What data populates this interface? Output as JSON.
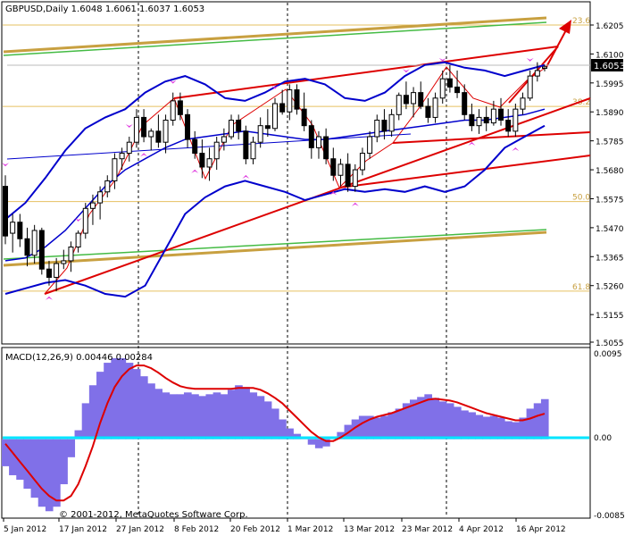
{
  "main_chart": {
    "symbol_label": "GBPUSD,Daily  1.6048 1.6061 1.6037 1.6053",
    "current_price_label": "1.6053",
    "y_ticks": [
      "1.6205",
      "1.6100",
      "1.5995",
      "1.5890",
      "1.5785",
      "1.5680",
      "1.5575",
      "1.5470",
      "1.5365",
      "1.5260",
      "1.5155",
      "1.5055"
    ],
    "fib_labels": [
      {
        "text": "23.6",
        "price": 1.6205
      },
      {
        "text": "38.2",
        "price": 1.591
      },
      {
        "text": "50.0",
        "price": 1.5565
      },
      {
        "text": "61.8",
        "price": 1.524
      }
    ]
  },
  "macd_panel": {
    "label": "MACD(12,26,9) 0.00446 0.00284",
    "y_top_label": "0.0095",
    "y_zero_label": "0.00",
    "y_bottom_label": "-0.00857"
  },
  "x_axis": {
    "labels": [
      "5 Jan 2012",
      "17 Jan 2012",
      "27 Jan 2012",
      "8 Feb 2012",
      "20 Feb 2012",
      "1 Mar 2012",
      "13 Mar 2012",
      "23 Mar 2012",
      "4 Apr 2012",
      "16 Apr 2012"
    ]
  },
  "copyright": "© 2001-2012, MetaQuotes Software Corp.",
  "colors": {
    "bull_candle": "#ffffff",
    "bear_candle": "#000000",
    "bollinger": "#0000cc",
    "trendline": "#dd0000",
    "macd_hist": "#8070e8",
    "signal": "#dd0000",
    "zero_line": "#00e5ff",
    "channel_green": "#44bb44",
    "channel_gold": "#c8a040",
    "fib": "#e6c060"
  },
  "chart_data": [
    {
      "type": "candlestick",
      "title": "GBPUSD,Daily  1.6048 1.6061 1.6037 1.6053",
      "x_range": [
        "5 Jan 2012",
        "20 Apr 2012"
      ],
      "ylim": [
        1.5055,
        1.63
      ],
      "open_high_low_close_last": [
        1.6048,
        1.6061,
        1.6037,
        1.6053
      ],
      "candles": [
        [
          1.562,
          1.566,
          1.541,
          1.544
        ],
        [
          1.545,
          1.552,
          1.538,
          1.549
        ],
        [
          1.549,
          1.552,
          1.54,
          1.543
        ],
        [
          1.543,
          1.547,
          1.533,
          1.537
        ],
        [
          1.537,
          1.548,
          1.534,
          1.546
        ],
        [
          1.546,
          1.547,
          1.53,
          1.532
        ],
        [
          1.532,
          1.535,
          1.526,
          1.529
        ],
        [
          1.529,
          1.536,
          1.524,
          1.534
        ],
        [
          1.534,
          1.539,
          1.532,
          1.535
        ],
        [
          1.535,
          1.542,
          1.531,
          1.54
        ],
        [
          1.54,
          1.546,
          1.538,
          1.545
        ],
        [
          1.545,
          1.556,
          1.543,
          1.554
        ],
        [
          1.554,
          1.559,
          1.548,
          1.556
        ],
        [
          1.556,
          1.562,
          1.55,
          1.56
        ],
        [
          1.56,
          1.566,
          1.558,
          1.564
        ],
        [
          1.564,
          1.574,
          1.561,
          1.572
        ],
        [
          1.572,
          1.576,
          1.568,
          1.574
        ],
        [
          1.574,
          1.58,
          1.571,
          1.578
        ],
        [
          1.578,
          1.59,
          1.576,
          1.587
        ],
        [
          1.587,
          1.59,
          1.578,
          1.58
        ],
        [
          1.58,
          1.583,
          1.575,
          1.582
        ],
        [
          1.582,
          1.588,
          1.576,
          1.578
        ],
        [
          1.578,
          1.588,
          1.574,
          1.586
        ],
        [
          1.586,
          1.596,
          1.584,
          1.593
        ],
        [
          1.593,
          1.596,
          1.586,
          1.588
        ],
        [
          1.588,
          1.59,
          1.576,
          1.579
        ],
        [
          1.579,
          1.582,
          1.572,
          1.574
        ],
        [
          1.574,
          1.579,
          1.565,
          1.569
        ],
        [
          1.569,
          1.576,
          1.564,
          1.572
        ],
        [
          1.572,
          1.58,
          1.568,
          1.578
        ],
        [
          1.578,
          1.583,
          1.575,
          1.58
        ],
        [
          1.58,
          1.588,
          1.579,
          1.586
        ],
        [
          1.586,
          1.588,
          1.579,
          1.582
        ],
        [
          1.582,
          1.584,
          1.57,
          1.572
        ],
        [
          1.572,
          1.58,
          1.57,
          1.578
        ],
        [
          1.578,
          1.587,
          1.576,
          1.584
        ],
        [
          1.584,
          1.59,
          1.58,
          1.583
        ],
        [
          1.583,
          1.594,
          1.582,
          1.592
        ],
        [
          1.592,
          1.597,
          1.588,
          1.589
        ],
        [
          1.589,
          1.599,
          1.586,
          1.597
        ],
        [
          1.597,
          1.599,
          1.588,
          1.59
        ],
        [
          1.59,
          1.596,
          1.582,
          1.584
        ],
        [
          1.584,
          1.586,
          1.572,
          1.576
        ],
        [
          1.576,
          1.582,
          1.572,
          1.58
        ],
        [
          1.58,
          1.583,
          1.57,
          1.572
        ],
        [
          1.572,
          1.576,
          1.564,
          1.566
        ],
        [
          1.566,
          1.572,
          1.562,
          1.57
        ],
        [
          1.57,
          1.574,
          1.56,
          1.562
        ],
        [
          1.562,
          1.57,
          1.56,
          1.568
        ],
        [
          1.568,
          1.576,
          1.566,
          1.574
        ],
        [
          1.574,
          1.582,
          1.572,
          1.58
        ],
        [
          1.58,
          1.588,
          1.578,
          1.586
        ],
        [
          1.586,
          1.59,
          1.579,
          1.582
        ],
        [
          1.582,
          1.59,
          1.58,
          1.588
        ],
        [
          1.588,
          1.596,
          1.586,
          1.595
        ],
        [
          1.595,
          1.6,
          1.59,
          1.592
        ],
        [
          1.592,
          1.598,
          1.587,
          1.596
        ],
        [
          1.596,
          1.6,
          1.59,
          1.591
        ],
        [
          1.591,
          1.594,
          1.585,
          1.587
        ],
        [
          1.587,
          1.596,
          1.585,
          1.594
        ],
        [
          1.594,
          1.604,
          1.592,
          1.601
        ],
        [
          1.601,
          1.606,
          1.596,
          1.598
        ],
        [
          1.598,
          1.604,
          1.594,
          1.596
        ],
        [
          1.596,
          1.599,
          1.586,
          1.588
        ],
        [
          1.588,
          1.592,
          1.582,
          1.584
        ],
        [
          1.584,
          1.59,
          1.581,
          1.587
        ],
        [
          1.587,
          1.591,
          1.582,
          1.585
        ],
        [
          1.585,
          1.593,
          1.584,
          1.59
        ],
        [
          1.59,
          1.594,
          1.584,
          1.586
        ],
        [
          1.586,
          1.59,
          1.58,
          1.582
        ],
        [
          1.582,
          1.592,
          1.58,
          1.59
        ],
        [
          1.59,
          1.596,
          1.588,
          1.594
        ],
        [
          1.594,
          1.604,
          1.593,
          1.602
        ],
        [
          1.602,
          1.607,
          1.6,
          1.604
        ],
        [
          1.6048,
          1.6061,
          1.6037,
          1.6053
        ]
      ],
      "bollinger_upper": [
        1.55,
        1.556,
        1.565,
        1.575,
        1.583,
        1.587,
        1.59,
        1.596,
        1.6,
        1.602,
        1.599,
        1.594,
        1.593,
        1.596,
        1.6,
        1.601,
        1.599,
        1.594,
        1.593,
        1.596,
        1.602,
        1.606,
        1.607,
        1.605,
        1.604,
        1.602,
        1.604,
        1.606
      ],
      "bollinger_middle": [
        1.535,
        1.536,
        1.54,
        1.546,
        1.554,
        1.562,
        1.568,
        1.572,
        1.576,
        1.579,
        1.58,
        1.581,
        1.582,
        1.581,
        1.58,
        1.579,
        1.579,
        1.58,
        1.581,
        1.582,
        1.583,
        1.584,
        1.585,
        1.586,
        1.586,
        1.587,
        1.588,
        1.59
      ],
      "bollinger_lower": [
        1.523,
        1.525,
        1.527,
        1.528,
        1.526,
        1.523,
        1.522,
        1.526,
        1.539,
        1.552,
        1.558,
        1.562,
        1.564,
        1.562,
        1.56,
        1.557,
        1.559,
        1.561,
        1.56,
        1.561,
        1.56,
        1.562,
        1.56,
        1.562,
        1.568,
        1.576,
        1.58,
        1.584
      ],
      "fib_levels": [
        {
          "label": "23.6",
          "price": 1.6205
        },
        {
          "label": "38.2",
          "price": 1.591
        },
        {
          "label": "50.0",
          "price": 1.5565
        },
        {
          "label": "61.8",
          "price": 1.524
        }
      ]
    },
    {
      "type": "bar",
      "title": "MACD(12,26,9) 0.00446 0.00284",
      "ylim": [
        -0.00857,
        0.0095
      ],
      "series": [
        {
          "name": "MACD",
          "values": [
            -0.003,
            -0.004,
            -0.0045,
            -0.0055,
            -0.0065,
            -0.0075,
            -0.008,
            -0.0075,
            -0.005,
            -0.002,
            0.001,
            0.004,
            0.006,
            0.0075,
            0.0085,
            0.009,
            0.009,
            0.0085,
            0.0078,
            0.007,
            0.0062,
            0.0056,
            0.0052,
            0.005,
            0.005,
            0.0052,
            0.005,
            0.0048,
            0.005,
            0.0052,
            0.005,
            0.0055,
            0.006,
            0.0058,
            0.0052,
            0.0048,
            0.0042,
            0.0034,
            0.0022,
            0.0012,
            0.0006,
            0.0002,
            -0.0006,
            -0.001,
            -0.0008,
            0.0,
            0.0008,
            0.0016,
            0.0022,
            0.0026,
            0.0026,
            0.0024,
            0.0026,
            0.003,
            0.0034,
            0.004,
            0.0044,
            0.0047,
            0.005,
            0.0046,
            0.0042,
            0.004,
            0.0036,
            0.0032,
            0.003,
            0.0027,
            0.0025,
            0.0026,
            0.0024,
            0.002,
            0.0019,
            0.0024,
            0.0034,
            0.004,
            0.00446
          ]
        },
        {
          "name": "Signal",
          "values": [
            -0.0005,
            -0.0015,
            -0.0025,
            -0.0035,
            -0.0045,
            -0.0055,
            -0.0063,
            -0.0068,
            -0.0068,
            -0.0063,
            -0.005,
            -0.003,
            -0.0008,
            0.0018,
            0.004,
            0.0058,
            0.007,
            0.0078,
            0.0082,
            0.0082,
            0.0079,
            0.0074,
            0.0068,
            0.0063,
            0.0059,
            0.0057,
            0.0056,
            0.0056,
            0.0056,
            0.0056,
            0.0056,
            0.0056,
            0.0057,
            0.0057,
            0.0057,
            0.0055,
            0.0051,
            0.0046,
            0.004,
            0.0032,
            0.0024,
            0.0016,
            0.0008,
            0.0002,
            -0.0002,
            -0.0002,
            0.0002,
            0.0007,
            0.0013,
            0.0018,
            0.0022,
            0.0025,
            0.0027,
            0.0029,
            0.0032,
            0.0035,
            0.0038,
            0.0041,
            0.0044,
            0.0045,
            0.0044,
            0.0043,
            0.0041,
            0.0038,
            0.0035,
            0.0032,
            0.0029,
            0.0027,
            0.0025,
            0.0023,
            0.0021,
            0.0021,
            0.0023,
            0.0026,
            0.00284
          ]
        }
      ]
    }
  ]
}
